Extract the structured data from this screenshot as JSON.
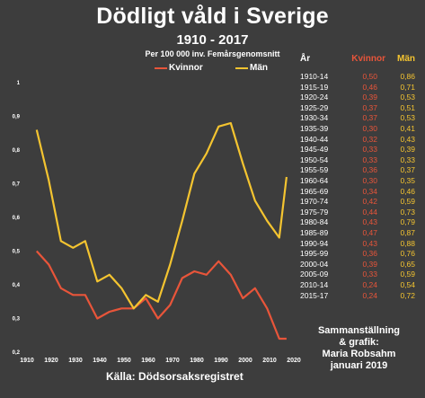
{
  "header": {
    "title": "Dödligt våld i Sverige",
    "subtitle": "1910 - 2017",
    "note": "Per 100 000 inv. Femårsgenomsnitt"
  },
  "table": {
    "headers": [
      "År",
      "Kvinnor",
      "Män"
    ],
    "rows": [
      [
        "1910-14",
        "0,50",
        "0,86"
      ],
      [
        "1915-19",
        "0,46",
        "0,71"
      ],
      [
        "1920-24",
        "0,39",
        "0,53"
      ],
      [
        "1925-29",
        "0,37",
        "0,51"
      ],
      [
        "1930-34",
        "0,37",
        "0,53"
      ],
      [
        "1935-39",
        "0,30",
        "0,41"
      ],
      [
        "1940-44",
        "0,32",
        "0,43"
      ],
      [
        "1945-49",
        "0,33",
        "0,39"
      ],
      [
        "1950-54",
        "0,33",
        "0,33"
      ],
      [
        "1955-59",
        "0,36",
        "0,37"
      ],
      [
        "1960-64",
        "0,30",
        "0,35"
      ],
      [
        "1965-69",
        "0,34",
        "0,46"
      ],
      [
        "1970-74",
        "0,42",
        "0,59"
      ],
      [
        "1975-79",
        "0,44",
        "0,73"
      ],
      [
        "1980-84",
        "0,43",
        "0,79"
      ],
      [
        "1985-89",
        "0,47",
        "0,87"
      ],
      [
        "1990-94",
        "0,43",
        "0,88"
      ],
      [
        "1995-99",
        "0,36",
        "0,76"
      ],
      [
        "2000-04",
        "0,39",
        "0,65"
      ],
      [
        "2005-09",
        "0,33",
        "0,59"
      ],
      [
        "2010-14",
        "0,24",
        "0,54"
      ],
      [
        "2015-17",
        "0,24",
        "0,72"
      ]
    ]
  },
  "credit": {
    "lines": [
      "Sammanställning",
      "& grafik:",
      "Maria Robsahm",
      "januari 2019"
    ]
  },
  "source": "Källa: Dödsorsaksregistret",
  "colors": {
    "background": "#3d3d3d",
    "kvinnor": "#e8553a",
    "man": "#f4c430",
    "text": "#ffffff"
  },
  "chart_data": {
    "type": "line",
    "title": "Dödligt våld i Sverige",
    "subtitle": "1910 - 2017",
    "xlim": [
      1910,
      2020
    ],
    "ylim": [
      0.2,
      1.0
    ],
    "x_ticks": [
      1910,
      1920,
      1930,
      1940,
      1950,
      1960,
      1970,
      1980,
      1990,
      2000,
      2010,
      2020
    ],
    "y_ticks": [
      0.2,
      0.3,
      0.4,
      0.5,
      0.6,
      0.7,
      0.8,
      0.9,
      1.0
    ],
    "y_tick_labels": [
      "0,2",
      "0,3",
      "0,4",
      "0,5",
      "0,6",
      "0,7",
      "0,8",
      "0,9",
      "1"
    ],
    "grid": false,
    "legend_position": "top-center",
    "x": [
      1914,
      1919,
      1924,
      1929,
      1934,
      1939,
      1944,
      1949,
      1954,
      1959,
      1964,
      1969,
      1974,
      1979,
      1984,
      1989,
      1994,
      1999,
      2004,
      2009,
      2014,
      2017
    ],
    "series": [
      {
        "name": "Kvinnor",
        "color": "#e8553a",
        "values": [
          0.5,
          0.46,
          0.39,
          0.37,
          0.37,
          0.3,
          0.32,
          0.33,
          0.33,
          0.36,
          0.3,
          0.34,
          0.42,
          0.44,
          0.43,
          0.47,
          0.43,
          0.36,
          0.39,
          0.33,
          0.24,
          0.24
        ]
      },
      {
        "name": "Män",
        "color": "#f4c430",
        "values": [
          0.86,
          0.71,
          0.53,
          0.51,
          0.53,
          0.41,
          0.43,
          0.39,
          0.33,
          0.37,
          0.35,
          0.46,
          0.59,
          0.73,
          0.79,
          0.87,
          0.88,
          0.76,
          0.65,
          0.59,
          0.54,
          0.72
        ]
      }
    ]
  }
}
